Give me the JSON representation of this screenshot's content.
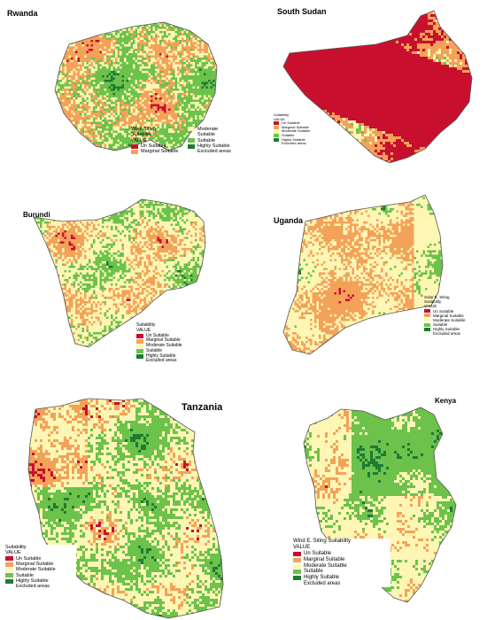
{
  "colors": {
    "un_suitable": "#c8102e",
    "marginal": "#f4a259",
    "moderate": "#fdf6b4",
    "suitable": "#6cc24a",
    "highly": "#1e7b34",
    "border": "#555555"
  },
  "maps": [
    {
      "country": "Rwanda",
      "legend": {
        "heading": [
          "Wind Siting",
          "Suitability",
          "VALUE"
        ],
        "items": [
          "Un Suitable",
          "Marginal Suitable",
          "Moderate Suitable",
          "Suitable",
          "Highly Suitable",
          "Excluded areas"
        ]
      }
    },
    {
      "country": "South Sudan",
      "legend": {
        "heading": [
          "Suitability",
          "VALUE"
        ],
        "items": [
          "Un Suitable",
          "Marginal Suitable",
          "Moderate Suitable",
          "Suitable",
          "Highly Suitable",
          "Excluded areas"
        ]
      }
    },
    {
      "country": "Burundi",
      "legend": {
        "heading": [
          "Suitability",
          "VALUE"
        ],
        "items": [
          "Un Suitable",
          "Marginal Suitable",
          "Moderate Suitable",
          "Suitable",
          "Highly Suitable",
          "Excluded areas"
        ]
      }
    },
    {
      "country": "Uganda",
      "legend": {
        "heading": [
          "Solar E. Siting",
          "Suitability",
          "VALUE"
        ],
        "items": [
          "Un Suitable",
          "Marginal Suitable",
          "Moderate Suitable",
          "Suitable",
          "Highly Suitable",
          "Excluded areas"
        ]
      }
    },
    {
      "country": "Tanzania",
      "legend": {
        "heading": [
          "Suitability",
          "VALUE"
        ],
        "items": [
          "Un Suitable",
          "Marginal Suitable",
          "Moderate Suitable",
          "Suitable",
          "Highly Suitable",
          "Excluded areas"
        ]
      }
    },
    {
      "country": "Kenya",
      "legend": {
        "heading": [
          "Wind E. Siting Suitability",
          "VALUE"
        ],
        "items": [
          "Un Suitable",
          "Marginal Suitable",
          "Moderate Suitable",
          "Suitable",
          "Highly Suitable",
          "Excluded areas"
        ]
      }
    }
  ]
}
